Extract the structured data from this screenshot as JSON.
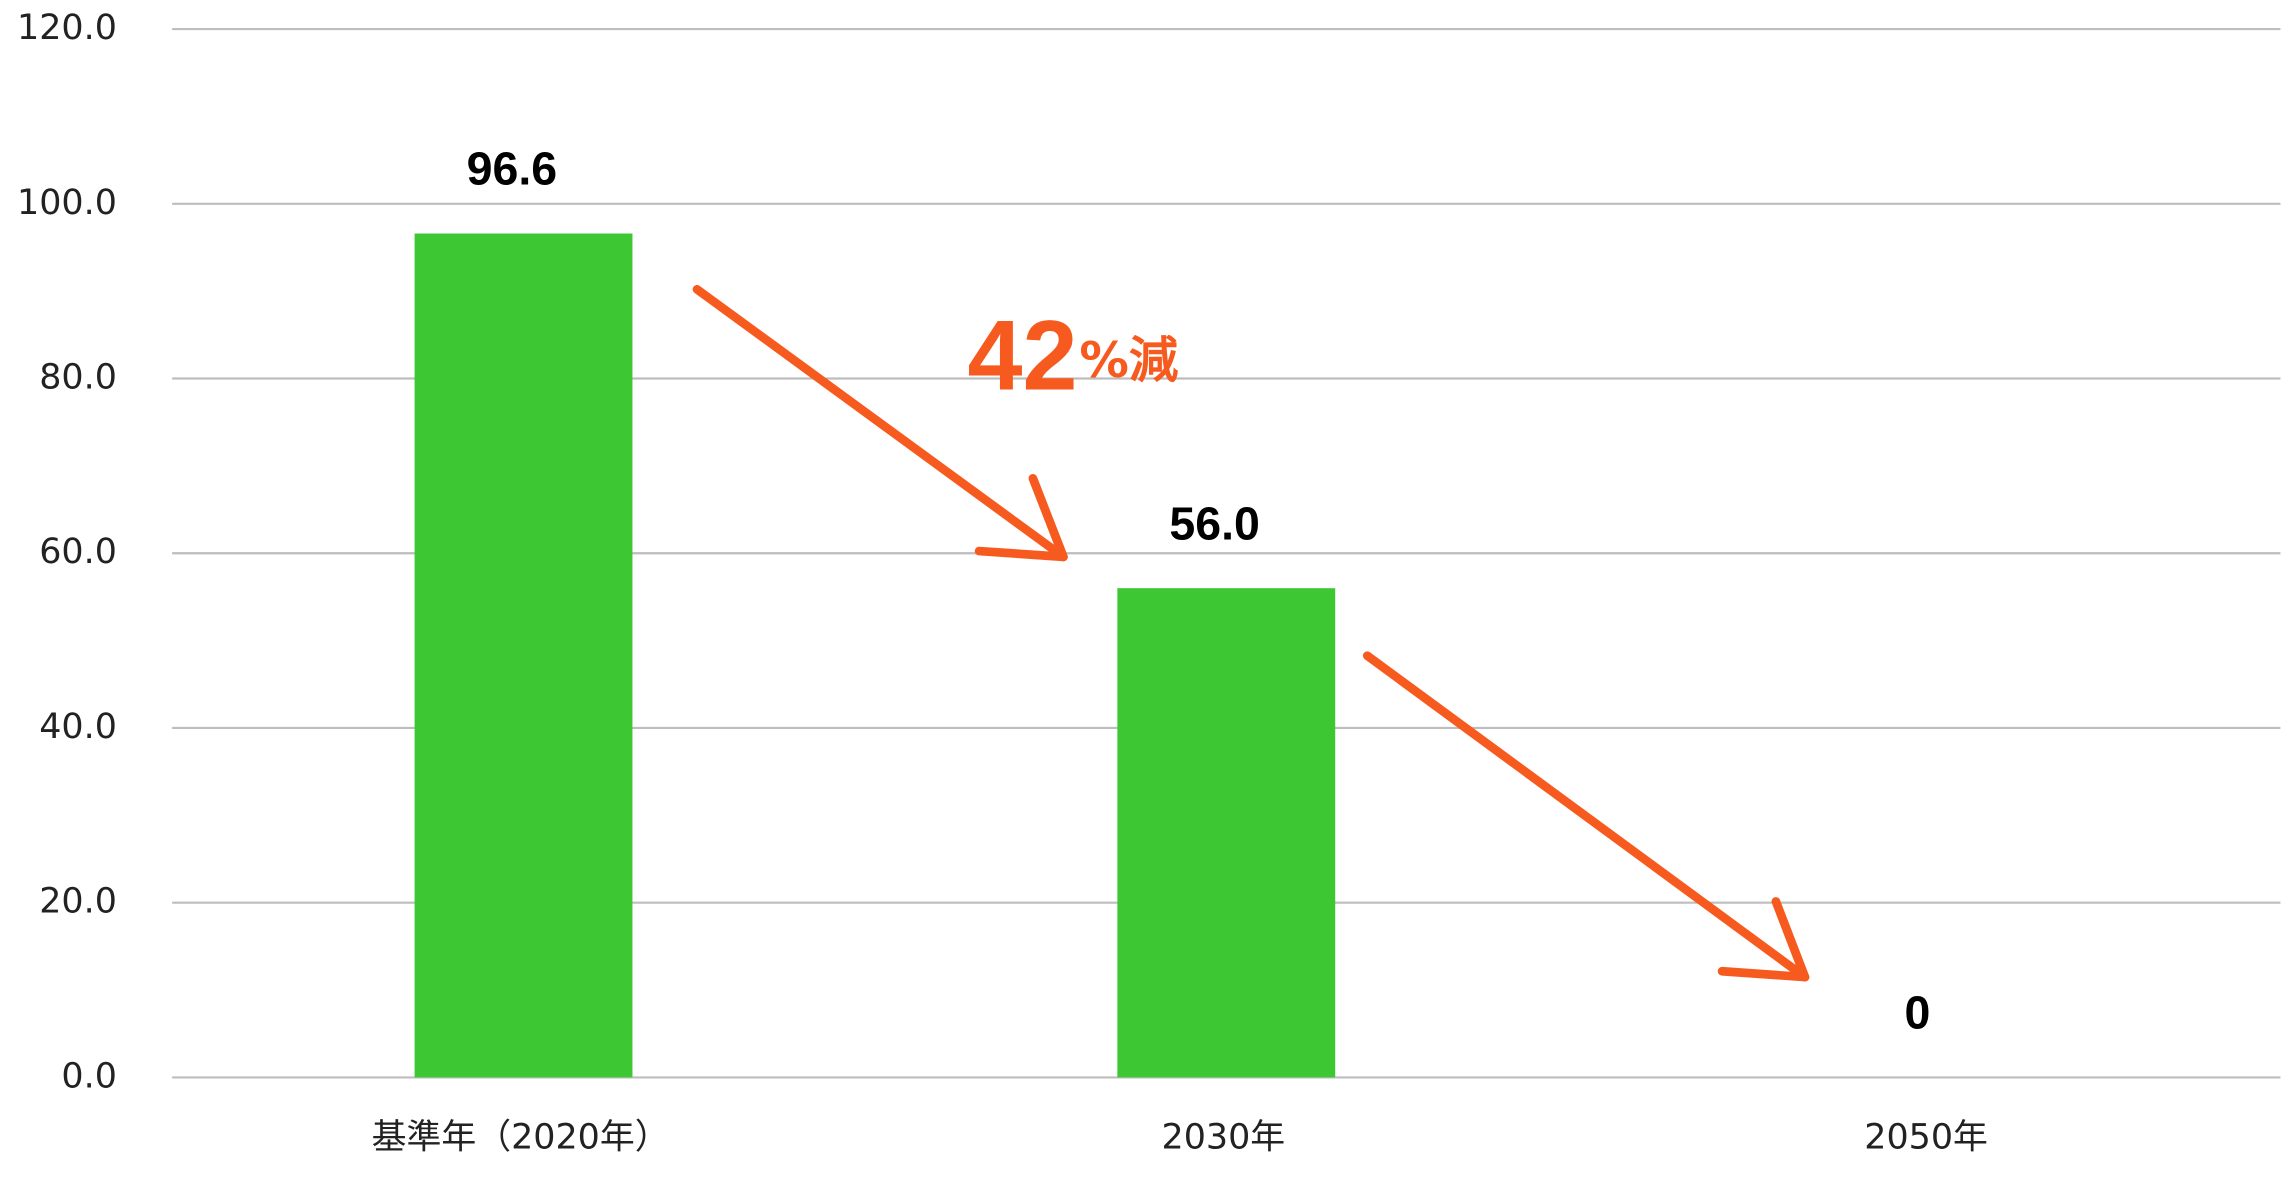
{
  "chart_data": {
    "type": "bar",
    "categories": [
      "基準年（2020年）",
      "2030年",
      "2050年"
    ],
    "values": [
      96.6,
      56.0,
      0
    ],
    "value_labels": [
      "96.6",
      "56.0",
      "0"
    ],
    "color": "#3dc833",
    "ylim": [
      0,
      120
    ],
    "yticks": [
      {
        "value": 0,
        "label": "0.0"
      },
      {
        "value": 20,
        "label": "20.0"
      },
      {
        "value": 40,
        "label": "40.0"
      },
      {
        "value": 60,
        "label": "60.0"
      },
      {
        "value": 80,
        "label": "80.0"
      },
      {
        "value": 100,
        "label": "100.0"
      },
      {
        "value": 120,
        "label": "120.0"
      }
    ],
    "grid": true,
    "annotation": {
      "number": "42",
      "unit": "%減"
    }
  }
}
